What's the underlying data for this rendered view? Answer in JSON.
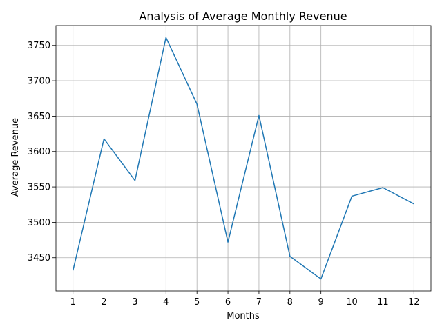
{
  "chart_data": {
    "type": "line",
    "title": "Analysis of Average Monthly Revenue",
    "xlabel": "Months",
    "ylabel": "Average Revenue",
    "x": [
      1,
      2,
      3,
      4,
      5,
      6,
      7,
      8,
      9,
      10,
      11,
      12
    ],
    "y": [
      3432,
      3618,
      3559,
      3761,
      3667,
      3472,
      3651,
      3452,
      3420,
      3537,
      3549,
      3526
    ],
    "xticks": [
      1,
      2,
      3,
      4,
      5,
      6,
      7,
      8,
      9,
      10,
      11,
      12
    ],
    "yticks": [
      3450,
      3500,
      3550,
      3600,
      3650,
      3700,
      3750
    ],
    "xlim": [
      0.45,
      12.55
    ],
    "ylim": [
      3403,
      3778
    ],
    "grid": true,
    "line_color": "#1f77b4"
  }
}
